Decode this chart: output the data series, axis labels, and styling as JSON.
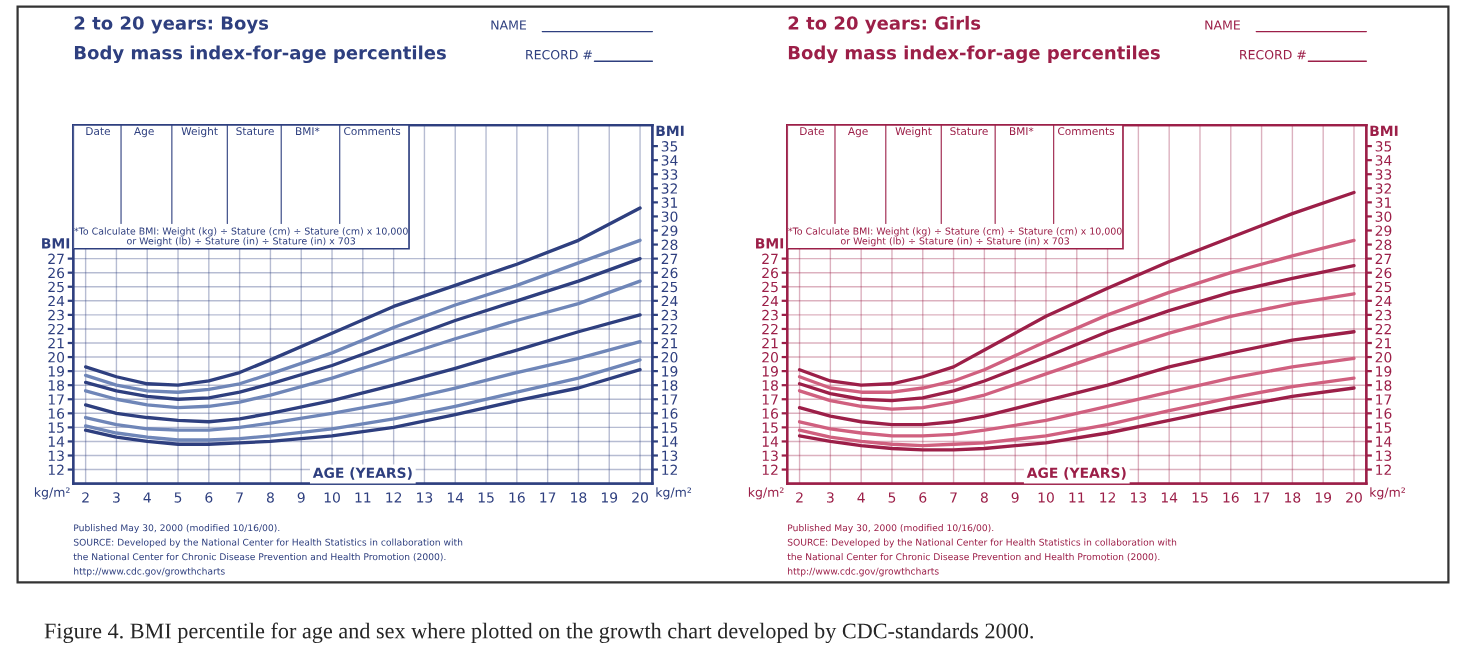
{
  "chart_data": [
    {
      "type": "line",
      "title": "2 to 20 years: Boys",
      "subtitle": "Body mass index-for-age percentiles",
      "xlabel": "AGE (YEARS)",
      "ylabel": "BMI",
      "x": [
        2,
        3,
        4,
        5,
        6,
        7,
        8,
        10,
        12,
        14,
        16,
        18,
        20
      ],
      "xlim": [
        1.6,
        20.4
      ],
      "xticks": [
        2,
        3,
        4,
        5,
        6,
        7,
        8,
        9,
        10,
        11,
        12,
        13,
        14,
        15,
        16,
        17,
        18,
        19,
        20
      ],
      "ylim": [
        11,
        36.5
      ],
      "yticks": [
        12,
        13,
        14,
        15,
        16,
        17,
        18,
        19,
        20,
        21,
        22,
        23,
        24,
        25,
        26,
        27
      ],
      "y2lim": [
        11,
        36.5
      ],
      "y2ticks": [
        12,
        13,
        14,
        15,
        16,
        17,
        18,
        19,
        20,
        21,
        22,
        23,
        24,
        25,
        26,
        27,
        28,
        29,
        30,
        31,
        32,
        33,
        34,
        35
      ],
      "y2label": "BMI",
      "grid": true,
      "line_style": "solid",
      "marker": "none",
      "series": [
        {
          "color": "#2e3f7f",
          "values": [
            14.8,
            14.3,
            14.0,
            13.8,
            13.8,
            13.9,
            14.0,
            14.4,
            15.0,
            15.9,
            16.9,
            17.8,
            19.1
          ]
        },
        {
          "color": "#6f86b8",
          "values": [
            15.1,
            14.6,
            14.3,
            14.1,
            14.1,
            14.2,
            14.4,
            14.9,
            15.6,
            16.5,
            17.5,
            18.5,
            19.8
          ]
        },
        {
          "color": "#6f86b8",
          "values": [
            15.7,
            15.2,
            14.9,
            14.8,
            14.8,
            15.0,
            15.3,
            16.0,
            16.8,
            17.8,
            18.9,
            19.9,
            21.1
          ]
        },
        {
          "color": "#2e3f7f",
          "values": [
            16.6,
            16.0,
            15.7,
            15.5,
            15.4,
            15.6,
            16.0,
            16.9,
            18.0,
            19.2,
            20.5,
            21.8,
            23.0
          ]
        },
        {
          "color": "#6f86b8",
          "values": [
            17.6,
            17.0,
            16.6,
            16.4,
            16.5,
            16.8,
            17.3,
            18.5,
            19.9,
            21.3,
            22.6,
            23.8,
            25.4
          ]
        },
        {
          "color": "#2e3f7f",
          "values": [
            18.2,
            17.6,
            17.2,
            17.0,
            17.1,
            17.5,
            18.1,
            19.4,
            21.0,
            22.6,
            24.0,
            25.4,
            27.0
          ]
        },
        {
          "color": "#6f86b8",
          "values": [
            18.7,
            18.0,
            17.6,
            17.5,
            17.7,
            18.1,
            18.8,
            20.3,
            22.1,
            23.7,
            25.1,
            26.7,
            28.3
          ]
        },
        {
          "color": "#2e3f7f",
          "values": [
            19.3,
            18.6,
            18.1,
            18.0,
            18.3,
            18.9,
            19.8,
            21.7,
            23.6,
            25.1,
            26.6,
            28.3,
            30.6
          ]
        }
      ],
      "annotations": [
        "NAME",
        "RECORD #",
        "Date",
        "Age",
        "Weight",
        "Stature",
        "BMI*",
        "Comments",
        "*To Calculate BMI: Weight (kg) ÷ Stature (cm) ÷ Stature (cm) x 10,000",
        "or Weight (lb) ÷ Stature (in) ÷ Stature (in) x 703",
        "kg/m²",
        "Published May 30, 2000 (modified 10/16/00).",
        "SOURCE: Developed by the National Center for Health Statistics in collaboration with",
        "the National Center for Chronic Disease Prevention and Health Promotion (2000).",
        "http://www.cdc.gov/growthcharts"
      ]
    },
    {
      "type": "line",
      "title": "2 to 20 years: Girls",
      "subtitle": "Body mass index-for-age percentiles",
      "xlabel": "AGE (YEARS)",
      "ylabel": "BMI",
      "x": [
        2,
        3,
        4,
        5,
        6,
        7,
        8,
        10,
        12,
        14,
        16,
        18,
        20
      ],
      "xlim": [
        1.6,
        20.4
      ],
      "xticks": [
        2,
        3,
        4,
        5,
        6,
        7,
        8,
        9,
        10,
        11,
        12,
        13,
        14,
        15,
        16,
        17,
        18,
        19,
        20
      ],
      "ylim": [
        11,
        36.5
      ],
      "yticks": [
        12,
        13,
        14,
        15,
        16,
        17,
        18,
        19,
        20,
        21,
        22,
        23,
        24,
        25,
        26,
        27
      ],
      "y2lim": [
        11,
        36.5
      ],
      "y2ticks": [
        12,
        13,
        14,
        15,
        16,
        17,
        18,
        19,
        20,
        21,
        22,
        23,
        24,
        25,
        26,
        27,
        28,
        29,
        30,
        31,
        32,
        33,
        34,
        35
      ],
      "y2label": "BMI",
      "grid": true,
      "line_style": "solid",
      "marker": "none",
      "series": [
        {
          "color": "#9c1f48",
          "values": [
            14.4,
            14.0,
            13.7,
            13.5,
            13.4,
            13.4,
            13.5,
            13.9,
            14.6,
            15.5,
            16.4,
            17.2,
            17.8
          ]
        },
        {
          "color": "#d0607f",
          "values": [
            14.8,
            14.3,
            14.0,
            13.8,
            13.7,
            13.8,
            13.9,
            14.4,
            15.2,
            16.2,
            17.1,
            17.9,
            18.5
          ]
        },
        {
          "color": "#d0607f",
          "values": [
            15.4,
            14.9,
            14.6,
            14.4,
            14.4,
            14.5,
            14.8,
            15.5,
            16.5,
            17.5,
            18.5,
            19.3,
            19.9
          ]
        },
        {
          "color": "#9c1f48",
          "values": [
            16.4,
            15.8,
            15.4,
            15.2,
            15.2,
            15.4,
            15.8,
            16.9,
            18.0,
            19.3,
            20.3,
            21.2,
            21.8
          ]
        },
        {
          "color": "#d0607f",
          "values": [
            17.6,
            16.9,
            16.5,
            16.3,
            16.4,
            16.8,
            17.3,
            18.8,
            20.3,
            21.7,
            22.9,
            23.8,
            24.5
          ]
        },
        {
          "color": "#9c1f48",
          "values": [
            18.1,
            17.4,
            17.0,
            16.9,
            17.1,
            17.6,
            18.3,
            20.0,
            21.8,
            23.3,
            24.6,
            25.6,
            26.5
          ]
        },
        {
          "color": "#d0607f",
          "values": [
            18.6,
            17.8,
            17.5,
            17.5,
            17.8,
            18.3,
            19.1,
            21.1,
            23.0,
            24.6,
            26.0,
            27.2,
            28.3
          ]
        },
        {
          "color": "#9c1f48",
          "values": [
            19.1,
            18.3,
            18.0,
            18.1,
            18.6,
            19.3,
            20.5,
            22.9,
            24.9,
            26.8,
            28.5,
            30.2,
            31.7
          ]
        }
      ],
      "annotations": [
        "NAME",
        "RECORD #",
        "Date",
        "Age",
        "Weight",
        "Stature",
        "BMI*",
        "Comments",
        "*To Calculate BMI: Weight (kg) ÷ Stature (cm) ÷ Stature (cm) x 10,000",
        "or Weight (lb) ÷ Stature (in) ÷ Stature (in) x 703",
        "kg/m²",
        "Published May 30, 2000 (modified 10/16/00).",
        "SOURCE: Developed by the National Center for Health Statistics in collaboration with",
        "the National Center for Chronic Disease Prevention and Health Promotion (2000).",
        "http://www.cdc.gov/growthcharts",
        "Figure 4. BMI percentile for age and sex where plotted on the growth chart developed by CDC-standards 2000."
      ]
    }
  ]
}
